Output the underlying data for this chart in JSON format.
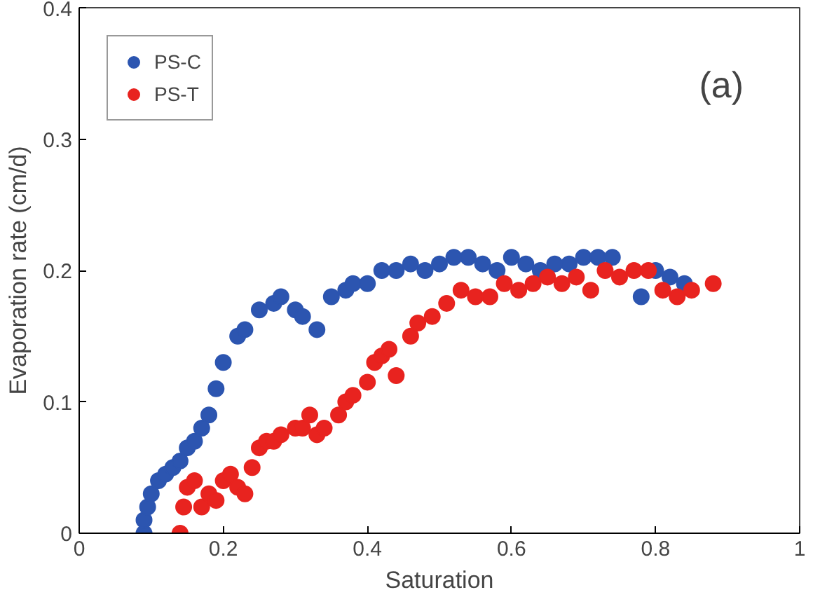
{
  "chart_data": {
    "type": "scatter",
    "xlabel": "Saturation",
    "ylabel": "Evaporation rate (cm/d)",
    "annotations": [
      "(a)"
    ],
    "xlim": [
      0,
      1
    ],
    "ylim": [
      0,
      0.4
    ],
    "xticks": [
      0,
      0.2,
      0.4,
      0.6,
      0.8,
      1
    ],
    "yticks": [
      0,
      0.1,
      0.2,
      0.3,
      0.4
    ],
    "grid": false,
    "legend": "top left",
    "marker": "circle",
    "series": [
      {
        "name": "PS-C",
        "color": "#2c55b0",
        "x": [
          0.09,
          0.09,
          0.095,
          0.1,
          0.11,
          0.12,
          0.13,
          0.14,
          0.15,
          0.16,
          0.17,
          0.18,
          0.19,
          0.2,
          0.22,
          0.23,
          0.25,
          0.27,
          0.28,
          0.3,
          0.31,
          0.33,
          0.35,
          0.37,
          0.38,
          0.4,
          0.42,
          0.44,
          0.46,
          0.48,
          0.5,
          0.52,
          0.54,
          0.56,
          0.58,
          0.6,
          0.62,
          0.64,
          0.66,
          0.68,
          0.7,
          0.72,
          0.74,
          0.76,
          0.78,
          0.8,
          0.82,
          0.84
        ],
        "values": [
          0.0,
          0.01,
          0.02,
          0.03,
          0.04,
          0.045,
          0.05,
          0.055,
          0.065,
          0.07,
          0.08,
          0.09,
          0.11,
          0.13,
          0.15,
          0.155,
          0.17,
          0.175,
          0.18,
          0.17,
          0.165,
          0.155,
          0.18,
          0.185,
          0.19,
          0.19,
          0.2,
          0.2,
          0.205,
          0.2,
          0.205,
          0.21,
          0.21,
          0.205,
          0.2,
          0.21,
          0.205,
          0.2,
          0.205,
          0.205,
          0.21,
          0.21,
          0.21,
          null,
          0.18,
          0.2,
          0.195,
          0.19
        ]
      },
      {
        "name": "PS-T",
        "color": "#e8231f",
        "x": [
          0.14,
          0.145,
          0.15,
          0.16,
          0.17,
          0.18,
          0.19,
          0.2,
          0.21,
          0.22,
          0.23,
          0.24,
          0.25,
          0.26,
          0.27,
          0.28,
          0.3,
          0.31,
          0.32,
          0.33,
          0.34,
          0.36,
          0.37,
          0.38,
          0.4,
          0.41,
          0.42,
          0.43,
          0.44,
          0.46,
          0.47,
          0.49,
          0.51,
          0.53,
          0.55,
          0.57,
          0.59,
          0.61,
          0.63,
          0.65,
          0.67,
          0.69,
          0.71,
          0.73,
          0.75,
          0.77,
          0.79,
          0.81,
          0.83,
          0.85,
          0.88
        ],
        "values": [
          0.0,
          0.02,
          0.035,
          0.04,
          0.02,
          0.03,
          0.025,
          0.04,
          0.045,
          0.035,
          0.03,
          0.05,
          0.065,
          0.07,
          0.07,
          0.075,
          0.08,
          0.08,
          0.09,
          0.075,
          0.08,
          0.09,
          0.1,
          0.105,
          0.115,
          0.13,
          0.135,
          0.14,
          0.12,
          0.15,
          0.16,
          0.165,
          0.175,
          0.185,
          0.18,
          0.18,
          0.19,
          0.185,
          0.19,
          0.195,
          0.19,
          0.195,
          0.185,
          0.2,
          0.195,
          0.2,
          0.2,
          0.185,
          0.18,
          0.185,
          0.19
        ]
      }
    ]
  }
}
